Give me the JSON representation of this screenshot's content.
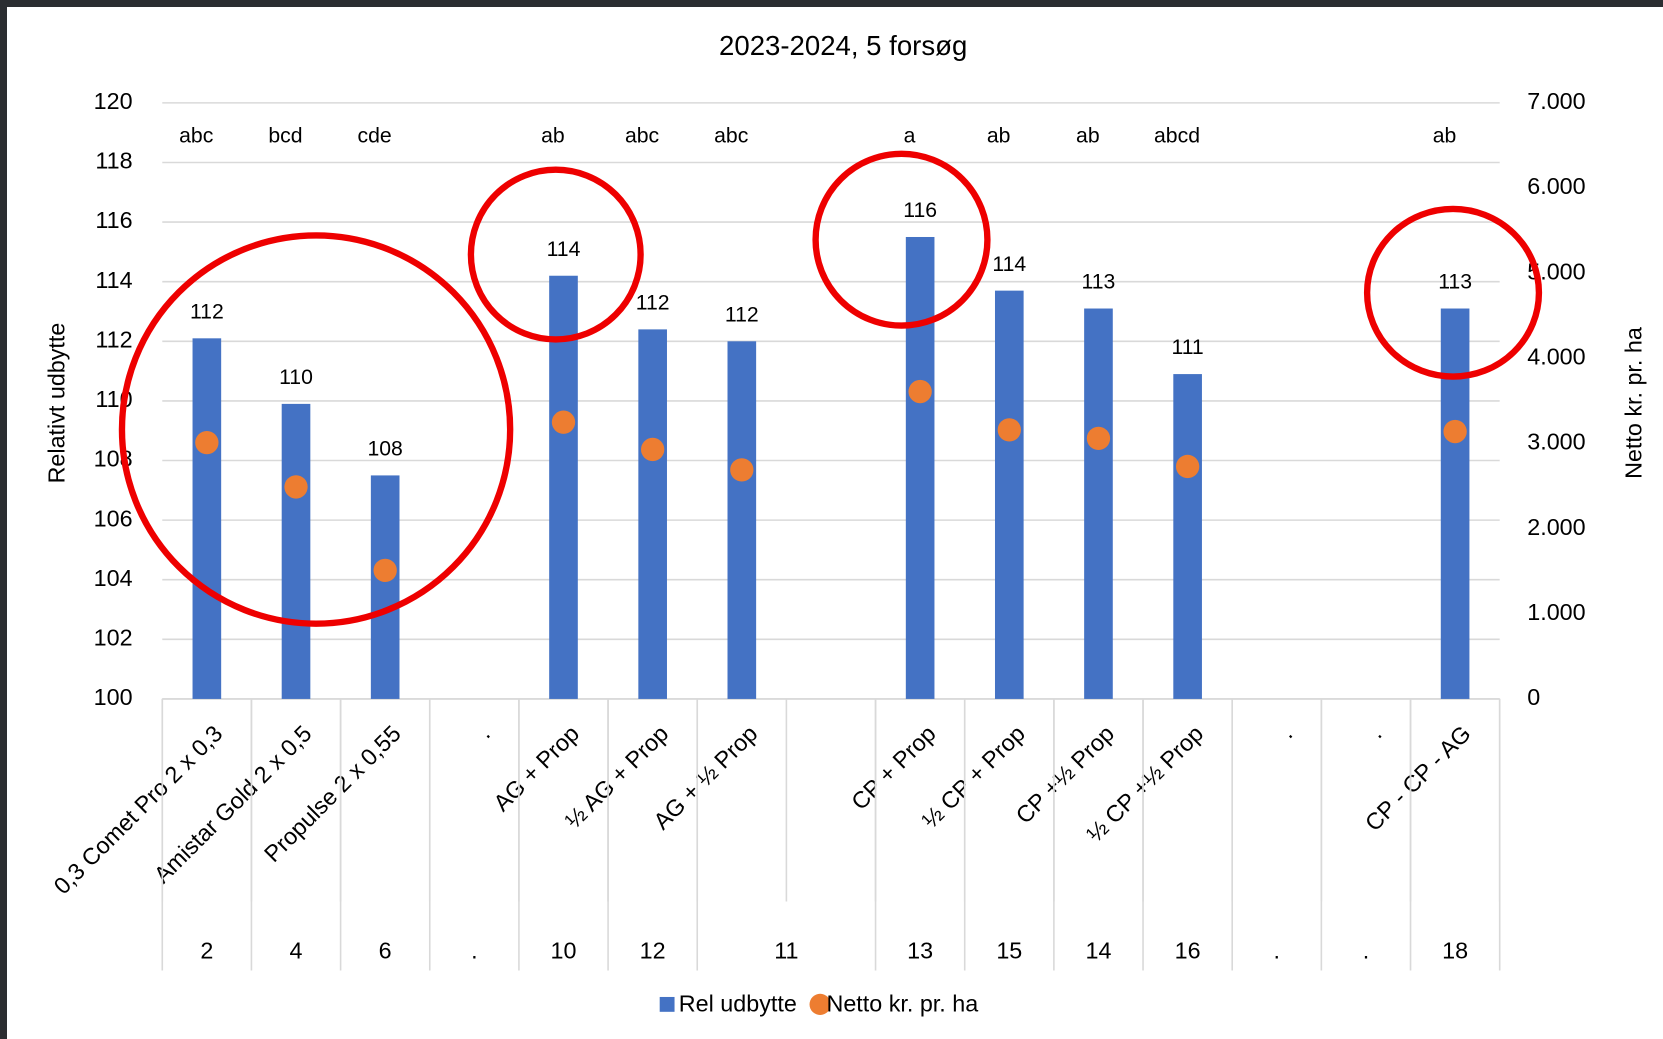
{
  "chart_data": {
    "type": "bar",
    "title": "2023-2024, 5 forsøg",
    "y_label": "Relativt udbytte",
    "y2_label": "Netto kr. pr. ha",
    "categories": [
      "0,3 Comet Pro 2 x 0,3",
      "Amistar Gold 2 x 0,5",
      "Propulse 2 x 0,55",
      ".",
      "AG + Prop",
      "½ AG + Prop",
      "AG + ½ Prop",
      null,
      "CP + Prop",
      "½ CP + Prop",
      "CP +½ Prop",
      "½ CP +½ Prop",
      ".",
      ".",
      "CP - CP - AG"
    ],
    "category_groups": [
      {
        "label": "2",
        "span": 1
      },
      {
        "label": "4",
        "span": 1
      },
      {
        "label": "6",
        "span": 1
      },
      {
        "label": ".",
        "span": 1
      },
      {
        "label": "10",
        "span": 1
      },
      {
        "label": "12",
        "span": 1
      },
      {
        "label": "11",
        "span": 2
      },
      {
        "label": "13",
        "span": 1
      },
      {
        "label": "15",
        "span": 1
      },
      {
        "label": "14",
        "span": 1
      },
      {
        "label": "16",
        "span": 1
      },
      {
        "label": ".",
        "span": 1
      },
      {
        "label": ".",
        "span": 1
      },
      {
        "label": "18",
        "span": 1
      }
    ],
    "letters": [
      "abc",
      "bcd",
      "cde",
      null,
      "ab",
      "abc",
      "abc",
      null,
      "a",
      "ab",
      "ab",
      "abcd",
      null,
      null,
      "ab"
    ],
    "series": [
      {
        "name": "Rel udbytte",
        "color": "#4472c4",
        "kind": "bar",
        "values": [
          112.1,
          109.9,
          107.5,
          null,
          114.2,
          112.4,
          112.0,
          null,
          115.5,
          113.7,
          113.1,
          110.9,
          null,
          null,
          113.1
        ],
        "value_labels": [
          "112",
          "110",
          "108",
          null,
          "114",
          "112",
          "112",
          null,
          "116",
          "114",
          "113",
          "111",
          null,
          null,
          "113"
        ]
      },
      {
        "name": "Netto kr. pr. ha",
        "color": "#ed7d31",
        "kind": "dot",
        "axis": "y2",
        "values": [
          3010,
          2490,
          1510,
          null,
          3250,
          2930,
          2690,
          null,
          3610,
          3160,
          3060,
          2730,
          null,
          null,
          3140
        ]
      }
    ],
    "ylim": [
      100,
      120
    ],
    "yticks": [
      100,
      102,
      104,
      106,
      108,
      110,
      112,
      114,
      116,
      118,
      120
    ],
    "y2lim": [
      0,
      7000
    ],
    "y2ticks": [
      0,
      {
        "value": 1000,
        "label": "1.000"
      },
      {
        "value": 2000,
        "label": "2.000"
      },
      {
        "value": 3000,
        "label": "3.000"
      },
      {
        "value": 4000,
        "label": "4.000"
      },
      {
        "value": 5000,
        "label": "5.000"
      },
      {
        "value": 6000,
        "label": "6.000"
      },
      {
        "value": 7000,
        "label": "7.000"
      }
    ],
    "grid": true,
    "legend": "bottom"
  }
}
